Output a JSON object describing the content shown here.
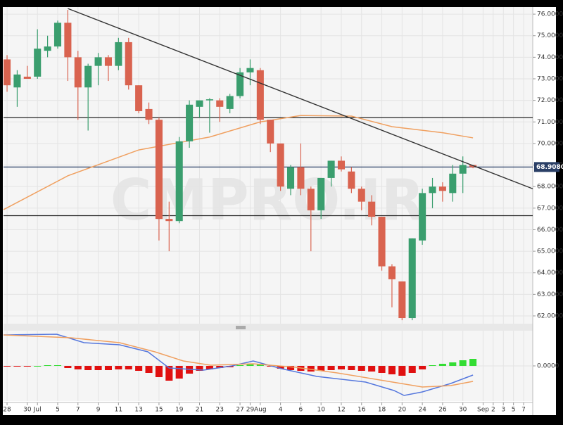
{
  "chart_data": [
    {
      "type": "candlestick",
      "watermark": "CMPRO.IR",
      "xlim": [
        -0.35,
        51.9
      ],
      "ylim": [
        61.64,
        76.33
      ],
      "xticks": [
        {
          "value": 0,
          "label": "28"
        },
        {
          "value": 2,
          "label": "30"
        },
        {
          "value": 3,
          "label": "Jul"
        },
        {
          "value": 5,
          "label": "5"
        },
        {
          "value": 7,
          "label": "7"
        },
        {
          "value": 9,
          "label": "9"
        },
        {
          "value": 11,
          "label": "11"
        },
        {
          "value": 13,
          "label": "13"
        },
        {
          "value": 15,
          "label": "15"
        },
        {
          "value": 17,
          "label": "19"
        },
        {
          "value": 19,
          "label": "21"
        },
        {
          "value": 21,
          "label": "23"
        },
        {
          "value": 23,
          "label": "27"
        },
        {
          "value": 24,
          "label": "29"
        },
        {
          "value": 25,
          "label": "Aug"
        },
        {
          "value": 27,
          "label": "4"
        },
        {
          "value": 29,
          "label": "6"
        },
        {
          "value": 31,
          "label": "10"
        },
        {
          "value": 33,
          "label": "12"
        },
        {
          "value": 35,
          "label": "16"
        },
        {
          "value": 37,
          "label": "18"
        },
        {
          "value": 39,
          "label": "20"
        },
        {
          "value": 41,
          "label": "24"
        },
        {
          "value": 43,
          "label": "26"
        },
        {
          "value": 45,
          "label": "30"
        },
        {
          "value": 47,
          "label": "Sep"
        },
        {
          "value": 48,
          "label": "2"
        },
        {
          "value": 49,
          "label": "3"
        },
        {
          "value": 50,
          "label": "5"
        },
        {
          "value": 51,
          "label": "7"
        }
      ],
      "yticks": [
        {
          "value": 62,
          "label": "62.0000"
        },
        {
          "value": 63,
          "label": "63.0000"
        },
        {
          "value": 64,
          "label": "64.0000"
        },
        {
          "value": 65,
          "label": "65.0000"
        },
        {
          "value": 66,
          "label": "66.0000"
        },
        {
          "value": 67,
          "label": "67.0000"
        },
        {
          "value": 68,
          "label": "68.0000"
        },
        {
          "value": 69,
          "label": "69.0000"
        },
        {
          "value": 70,
          "label": "70.0000"
        },
        {
          "value": 71,
          "label": "71.0000"
        },
        {
          "value": 72,
          "label": "72.0000"
        },
        {
          "value": 73,
          "label": "73.0000"
        },
        {
          "value": 74,
          "label": "74.0000"
        },
        {
          "value": 75,
          "label": "75.0000"
        },
        {
          "value": 76,
          "label": "76.0000"
        }
      ],
      "grid": true,
      "up_color": "#3a9e6e",
      "down_color": "#d9634f",
      "open": [
        73.9,
        72.6,
        73.1,
        73.1,
        74.3,
        74.5,
        75.6,
        74.0,
        72.6,
        73.6,
        74.0,
        73.6,
        74.7,
        72.7,
        71.6,
        71.1,
        66.5,
        66.4,
        70.1,
        71.7,
        72.0,
        72.0,
        71.6,
        72.2,
        73.3,
        73.4,
        71.1,
        70.0,
        67.9,
        68.9,
        67.9,
        66.9,
        68.4,
        69.2,
        68.7,
        67.9,
        67.3,
        66.6,
        64.3,
        63.6,
        61.9,
        65.5,
        67.7,
        68.0,
        67.7,
        68.6,
        69.0
      ],
      "high": [
        74.1,
        73.4,
        73.6,
        75.3,
        75.0,
        75.7,
        76.2,
        74.3,
        73.7,
        74.2,
        74.1,
        74.9,
        74.9,
        72.7,
        71.9,
        71.2,
        67.3,
        70.3,
        72.0,
        72.0,
        72.1,
        72.1,
        72.3,
        73.5,
        73.9,
        73.5,
        71.1,
        70.0,
        69.0,
        70.0,
        68.0,
        68.4,
        69.2,
        69.4,
        68.9,
        68.0,
        67.6,
        66.6,
        64.4,
        63.6,
        65.6,
        67.9,
        68.4,
        68.2,
        69.0,
        69.4,
        69.0
      ],
      "low": [
        72.4,
        71.7,
        73.0,
        73.0,
        74.0,
        74.4,
        72.9,
        71.1,
        70.6,
        72.7,
        72.9,
        73.4,
        72.5,
        71.4,
        70.9,
        65.5,
        65.0,
        66.3,
        69.8,
        71.2,
        70.5,
        71.0,
        71.4,
        72.1,
        72.7,
        70.9,
        69.6,
        67.8,
        67.6,
        67.6,
        65.0,
        66.5,
        68.0,
        68.7,
        67.7,
        66.9,
        66.2,
        64.1,
        62.4,
        61.8,
        61.8,
        65.3,
        67.0,
        67.3,
        67.3,
        67.7,
        68.85
      ],
      "close": [
        72.7,
        73.2,
        73.0,
        74.4,
        74.5,
        75.6,
        74.0,
        72.6,
        73.6,
        74.0,
        73.6,
        74.7,
        72.7,
        71.5,
        71.1,
        66.5,
        66.4,
        70.1,
        71.8,
        72.0,
        72.05,
        71.7,
        72.2,
        73.3,
        73.5,
        71.1,
        70.0,
        68.0,
        68.9,
        67.9,
        66.9,
        68.4,
        69.2,
        68.8,
        67.9,
        67.3,
        66.6,
        64.3,
        63.7,
        61.9,
        65.6,
        67.7,
        68.0,
        67.8,
        68.6,
        69.0,
        68.9
      ],
      "moving_average": {
        "color": "#f0a060",
        "x": [
          -0.35,
          6,
          13,
          20,
          25,
          29,
          34,
          38,
          43,
          46
        ],
        "values": [
          66.93,
          68.5,
          69.7,
          70.3,
          71.0,
          71.3,
          71.27,
          70.78,
          70.5,
          70.26
        ]
      },
      "hlines": [
        71.2,
        66.65
      ],
      "last_price": {
        "value": 68.908,
        "label": "68.9080"
      },
      "trendline": {
        "x": [
          6,
          51.9
        ],
        "values": [
          76.26,
          67.9
        ]
      }
    },
    {
      "type": "macd",
      "ylim": [
        -1,
        1
      ],
      "yticks": [
        {
          "value": 0,
          "label": "0.0000"
        }
      ],
      "histogram": [
        -0.02,
        -0.02,
        -0.02,
        0,
        0.02,
        0.02,
        -0.06,
        -0.1,
        -0.12,
        -0.12,
        -0.12,
        -0.1,
        -0.1,
        -0.14,
        -0.2,
        -0.32,
        -0.42,
        -0.36,
        -0.22,
        -0.14,
        -0.1,
        -0.06,
        -0.04,
        0.02,
        0.04,
        0.04,
        -0.02,
        -0.08,
        -0.12,
        -0.14,
        -0.16,
        -0.14,
        -0.12,
        -0.1,
        -0.12,
        -0.14,
        -0.16,
        -0.2,
        -0.24,
        -0.28,
        -0.2,
        -0.1,
        0.02,
        0.06,
        0.1,
        0.16,
        0.2
      ],
      "up_color": "#33dd33",
      "down_color": "#e01010",
      "series": [
        {
          "color": "#5577dd",
          "x": [
            -0.35,
            4.9,
            7.6,
            11.1,
            13.9,
            16,
            19.4,
            22.2,
            24.3,
            27.1,
            30.6,
            35.4,
            38.2,
            39.2,
            41,
            43.8,
            46
          ],
          "values": [
            0.88,
            0.9,
            0.66,
            0.6,
            0.4,
            -0.06,
            -0.12,
            0,
            0.14,
            -0.08,
            -0.3,
            -0.46,
            -0.7,
            -0.84,
            -0.74,
            -0.5,
            -0.26
          ]
        },
        {
          "color": "#f0a060",
          "x": [
            -0.35,
            6.25,
            11.1,
            14.6,
            17.4,
            20.1,
            24.3,
            28.5,
            32.6,
            36.8,
            41,
            43.8,
            46
          ],
          "values": [
            0.88,
            0.8,
            0.66,
            0.4,
            0.14,
            0.02,
            0.06,
            -0.04,
            -0.2,
            -0.4,
            -0.6,
            -0.56,
            -0.44
          ]
        }
      ]
    }
  ]
}
